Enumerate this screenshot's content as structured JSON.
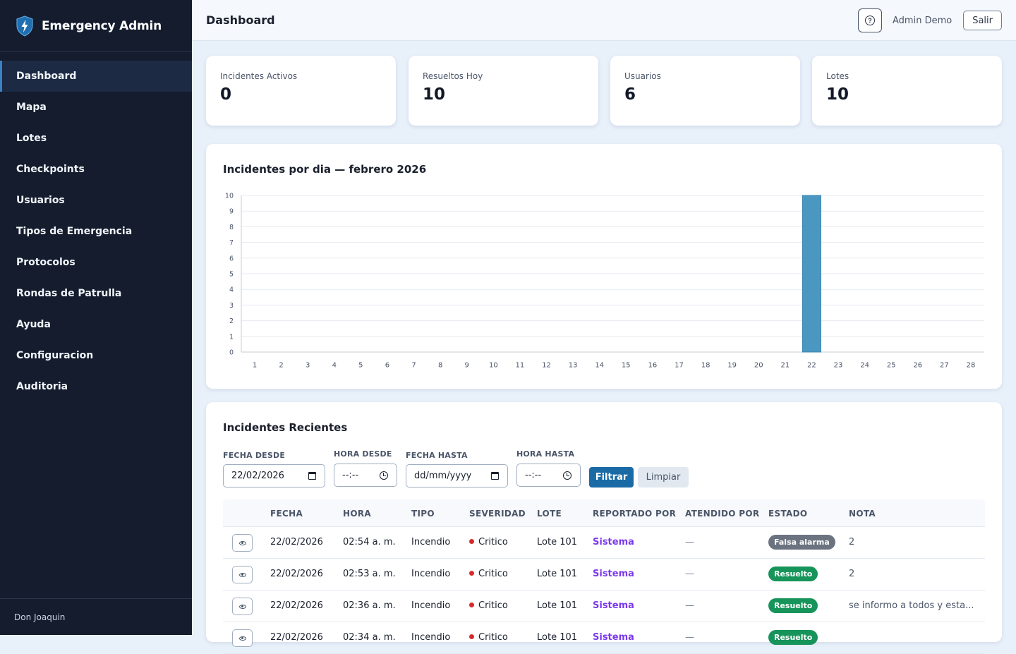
{
  "sidebar": {
    "brand": "Emergency Admin",
    "items": [
      {
        "label": "Dashboard",
        "active": true
      },
      {
        "label": "Mapa"
      },
      {
        "label": "Lotes"
      },
      {
        "label": "Checkpoints"
      },
      {
        "label": "Usuarios"
      },
      {
        "label": "Tipos de Emergencia"
      },
      {
        "label": "Protocolos"
      },
      {
        "label": "Rondas de Patrulla"
      },
      {
        "label": "Ayuda"
      },
      {
        "label": "Configuracion"
      },
      {
        "label": "Auditoria"
      }
    ],
    "footer_user": "Don Joaquin"
  },
  "header": {
    "title": "Dashboard",
    "help_icon": "question-circle-icon",
    "user": "Admin Demo",
    "logout_label": "Salir"
  },
  "stats": [
    {
      "label": "Incidentes Activos",
      "value": "0"
    },
    {
      "label": "Resueltos Hoy",
      "value": "10"
    },
    {
      "label": "Usuarios",
      "value": "6"
    },
    {
      "label": "Lotes",
      "value": "10"
    }
  ],
  "chart_data": {
    "type": "bar",
    "title": "Incidentes por dia — febrero 2026",
    "categories": [
      "1",
      "2",
      "3",
      "4",
      "5",
      "6",
      "7",
      "8",
      "9",
      "10",
      "11",
      "12",
      "13",
      "14",
      "15",
      "16",
      "17",
      "18",
      "19",
      "20",
      "21",
      "22",
      "23",
      "24",
      "25",
      "26",
      "27",
      "28"
    ],
    "values": [
      0,
      0,
      0,
      0,
      0,
      0,
      0,
      0,
      0,
      0,
      0,
      0,
      0,
      0,
      0,
      0,
      0,
      0,
      0,
      0,
      0,
      10,
      0,
      0,
      0,
      0,
      0,
      0
    ],
    "ylim": [
      0,
      10
    ],
    "yticks": [
      0,
      1,
      2,
      3,
      4,
      5,
      6,
      7,
      8,
      9,
      10
    ],
    "grid": true,
    "bar_color": "#4a97c2"
  },
  "incidents": {
    "title": "Incidentes Recientes",
    "filters": {
      "fecha_desde_label": "FECHA DESDE",
      "fecha_desde_value": "22/02/2026",
      "hora_desde_label": "HORA DESDE",
      "hora_desde_value": "--:--",
      "fecha_hasta_label": "FECHA HASTA",
      "fecha_hasta_value": "dd/mm/yyyy",
      "hora_hasta_label": "HORA HASTA",
      "hora_hasta_value": "--:--",
      "filter_label": "Filtrar",
      "clear_label": "Limpiar"
    },
    "columns": [
      "FECHA",
      "HORA",
      "TIPO",
      "SEVERIDAD",
      "LOTE",
      "REPORTADO POR",
      "ATENDIDO POR",
      "ESTADO",
      "NOTA"
    ],
    "rows": [
      {
        "fecha": "22/02/2026",
        "hora": "02:54 a. m.",
        "tipo": "Incendio",
        "severidad": "Critico",
        "lote": "Lote 101",
        "reportado": "Sistema",
        "atendido": "—",
        "estado": "Falsa alarma",
        "estado_color": "gray",
        "nota": "2"
      },
      {
        "fecha": "22/02/2026",
        "hora": "02:53 a. m.",
        "tipo": "Incendio",
        "severidad": "Critico",
        "lote": "Lote 101",
        "reportado": "Sistema",
        "atendido": "—",
        "estado": "Resuelto",
        "estado_color": "green",
        "nota": "2"
      },
      {
        "fecha": "22/02/2026",
        "hora": "02:36 a. m.",
        "tipo": "Incendio",
        "severidad": "Critico",
        "lote": "Lote 101",
        "reportado": "Sistema",
        "atendido": "—",
        "estado": "Resuelto",
        "estado_color": "green",
        "nota": "se informo a todos y esta..."
      },
      {
        "fecha": "22/02/2026",
        "hora": "02:34 a. m.",
        "tipo": "Incendio",
        "severidad": "Critico",
        "lote": "Lote 101",
        "reportado": "Sistema",
        "atendido": "—",
        "estado": "Resuelto",
        "estado_color": "green",
        "nota": ""
      }
    ]
  }
}
